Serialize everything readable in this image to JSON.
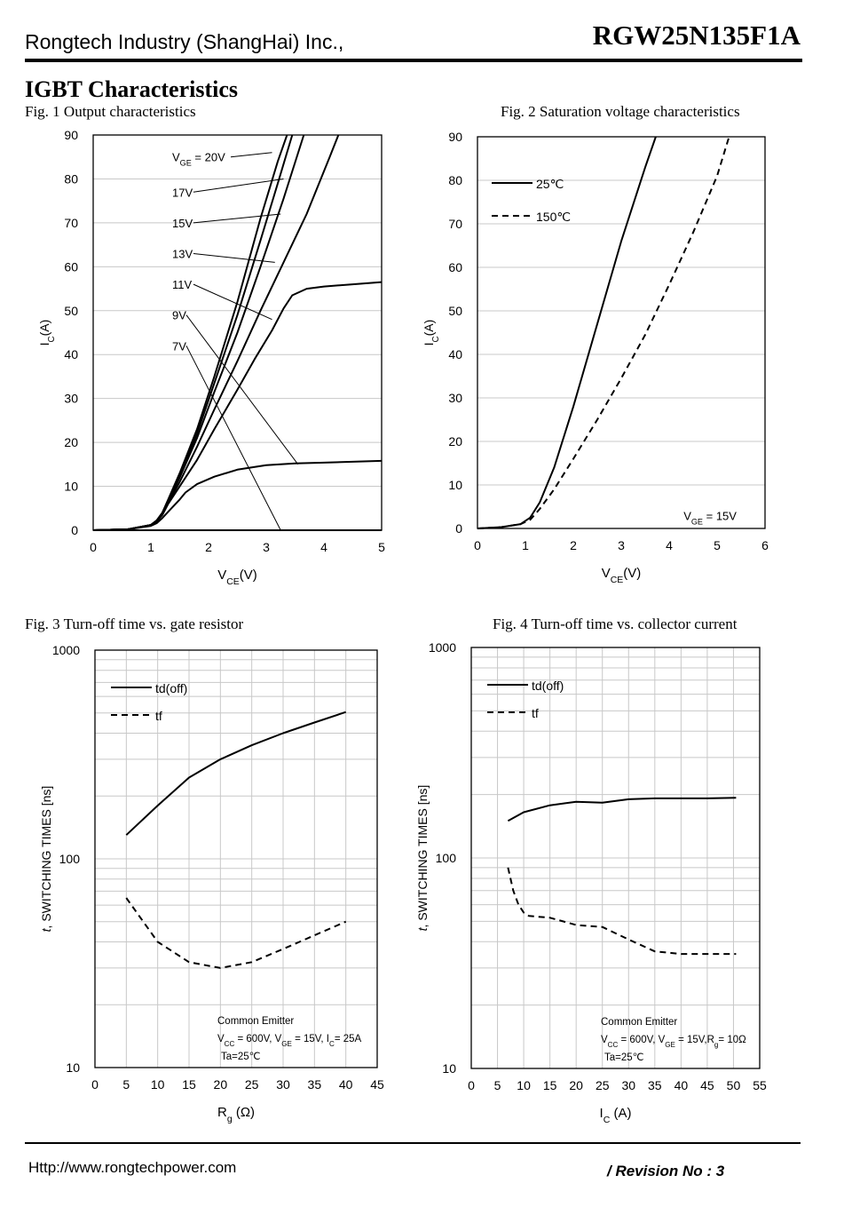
{
  "header": {
    "company": "Rongtech Industry (ShangHai) Inc.,",
    "part_number": "RGW25N135F1A"
  },
  "section_title": "IGBT Characteristics",
  "footer": {
    "url": "Http://www.rongtechpower.com",
    "revision": "/ Revision No : 3"
  },
  "colors": {
    "line": "#000000",
    "grid": "#c8c8c8",
    "background": "#ffffff"
  },
  "chart_data": [
    {
      "id": "fig1",
      "type": "line",
      "caption": "Fig. 1 Output characteristics",
      "xlabel": "V",
      "xlabel_sub": "CE",
      "xlabel_tail": "(V)",
      "ylabel": "I",
      "ylabel_sub": "C",
      "ylabel_tail": "(A)",
      "xlim": [
        0,
        5
      ],
      "ylim": [
        0,
        90
      ],
      "xticks": [
        0,
        1,
        2,
        3,
        4,
        5
      ],
      "yticks": [
        0,
        10,
        20,
        30,
        40,
        50,
        60,
        70,
        80,
        90
      ],
      "grid": "horizontal",
      "series": [
        {
          "name": "VGE = 20V",
          "label_main": "V",
          "label_sub": "GE",
          "label_tail": " = 20V",
          "dash": "",
          "label_xy": [
            1.0,
            85
          ],
          "target": [
            3.1,
            86
          ],
          "x": [
            0,
            0.6,
            1.0,
            1.1,
            1.2,
            1.3,
            1.5,
            1.8,
            2.1,
            2.5,
            2.9,
            3.2,
            3.36
          ],
          "y": [
            0,
            0.2,
            1.2,
            2.2,
            4.0,
            7.0,
            13.0,
            23.0,
            35.0,
            52.0,
            71.0,
            84.0,
            90.0
          ]
        },
        {
          "name": "17V",
          "label_main": "17V",
          "label_sub": "",
          "label_tail": "",
          "dash": "",
          "label_xy": [
            1.0,
            77
          ],
          "target": [
            3.3,
            80
          ],
          "x": [
            0,
            0.6,
            1.0,
            1.1,
            1.2,
            1.3,
            1.5,
            1.8,
            2.1,
            2.5,
            2.9,
            3.2,
            3.45
          ],
          "y": [
            0,
            0.2,
            1.2,
            2.2,
            4.0,
            6.8,
            12.5,
            22.0,
            33.5,
            49.0,
            66.0,
            79.0,
            90.0
          ]
        },
        {
          "name": "15V",
          "label_main": "15V",
          "label_sub": "",
          "label_tail": "",
          "dash": "",
          "label_xy": [
            1.0,
            70
          ],
          "target": [
            3.25,
            72
          ],
          "x": [
            0,
            0.6,
            1.0,
            1.1,
            1.2,
            1.3,
            1.5,
            1.8,
            2.1,
            2.5,
            2.9,
            3.3,
            3.65
          ],
          "y": [
            0,
            0.2,
            1.2,
            2.1,
            3.8,
            6.5,
            12.0,
            21.0,
            31.5,
            45.0,
            60.0,
            75.5,
            90.0
          ]
        },
        {
          "name": "13V",
          "label_main": "13V",
          "label_sub": "",
          "label_tail": "",
          "dash": "",
          "label_xy": [
            1.0,
            63
          ],
          "target": [
            3.15,
            61
          ],
          "x": [
            0,
            0.6,
            1.0,
            1.1,
            1.2,
            1.3,
            1.5,
            1.8,
            2.1,
            2.5,
            2.9,
            3.3,
            3.7,
            4.1,
            4.25
          ],
          "y": [
            0,
            0.2,
            1.2,
            2.0,
            3.6,
            6.2,
            11.0,
            19.0,
            27.5,
            38.5,
            50.0,
            61.0,
            72.0,
            85.0,
            90.0
          ]
        },
        {
          "name": "11V",
          "label_main": "11V",
          "label_sub": "",
          "label_tail": "",
          "dash": "",
          "label_xy": [
            1.0,
            56
          ],
          "target": [
            3.1,
            48
          ],
          "x": [
            0,
            0.6,
            1.0,
            1.1,
            1.2,
            1.3,
            1.5,
            1.8,
            2.1,
            2.5,
            2.8,
            3.1,
            3.3,
            3.45,
            3.7,
            4.0,
            4.5,
            5.0
          ],
          "y": [
            0,
            0.2,
            1.2,
            2.0,
            3.5,
            6.0,
            10.0,
            16.0,
            23.0,
            32.0,
            39.0,
            45.5,
            50.5,
            53.5,
            55.0,
            55.5,
            56.0,
            56.5
          ]
        },
        {
          "name": "9V",
          "label_main": "9V",
          "label_sub": "",
          "label_tail": "",
          "dash": "",
          "label_xy": [
            1.0,
            49
          ],
          "target": [
            3.55,
            15
          ],
          "x": [
            0,
            0.6,
            1.0,
            1.1,
            1.2,
            1.3,
            1.4,
            1.5,
            1.6,
            1.8,
            2.1,
            2.5,
            3.0,
            3.5,
            4.0,
            5.0
          ],
          "y": [
            0,
            0.2,
            1.0,
            1.6,
            2.8,
            4.2,
            5.6,
            7.0,
            8.6,
            10.5,
            12.2,
            13.8,
            14.8,
            15.2,
            15.4,
            15.8
          ]
        },
        {
          "name": "7V",
          "label_main": "7V",
          "label_sub": "",
          "label_tail": "",
          "dash": "",
          "label_xy": [
            1.0,
            42
          ],
          "target": [
            3.25,
            0
          ],
          "x": [
            0,
            1.0,
            2.0,
            3.0,
            4.0,
            5.0
          ],
          "y": [
            0,
            0,
            0,
            0,
            0,
            0
          ]
        }
      ]
    },
    {
      "id": "fig2",
      "type": "line",
      "caption": "Fig. 2 Saturation voltage characteristics",
      "xlabel": "V",
      "xlabel_sub": "CE",
      "xlabel_tail": "(V)",
      "ylabel": "I",
      "ylabel_sub": "C",
      "ylabel_tail": "(A)",
      "xlim": [
        0,
        6
      ],
      "ylim": [
        0,
        90
      ],
      "xticks": [
        0,
        1,
        2,
        3,
        4,
        5,
        6
      ],
      "yticks": [
        0,
        10,
        20,
        30,
        40,
        50,
        60,
        70,
        80,
        90
      ],
      "grid": "horizontal",
      "annotation": {
        "main": "V",
        "sub": "GE",
        "tail": "= 15V",
        "xy": [
          4.3,
          3
        ]
      },
      "series": [
        {
          "name": "25℃",
          "dash": "",
          "x": [
            0,
            0.5,
            0.9,
            1.1,
            1.3,
            1.6,
            2.0,
            2.5,
            3.0,
            3.5,
            3.72
          ],
          "y": [
            0,
            0.3,
            1.0,
            2.5,
            6.0,
            14.0,
            28.0,
            47.0,
            66.0,
            83.0,
            90.0
          ]
        },
        {
          "name": "150℃",
          "dash": "7 5",
          "x": [
            0,
            0.5,
            0.9,
            1.1,
            1.3,
            1.6,
            2.0,
            2.5,
            3.0,
            3.5,
            4.0,
            4.5,
            5.0,
            5.25
          ],
          "y": [
            0,
            0.3,
            1.0,
            2.0,
            4.5,
            9.0,
            16.0,
            25.0,
            34.5,
            44.5,
            56.0,
            68.0,
            81.0,
            90.0
          ]
        }
      ]
    },
    {
      "id": "fig3",
      "type": "line",
      "caption": "Fig. 3 Turn-off time vs. gate resistor",
      "xlabel": "R",
      "xlabel_sub": "g",
      "xlabel_tail": " (Ω)",
      "ylabel_italic": "t",
      "ylabel_rest": ", SWITCHING TIMES [ns]",
      "yscale": "log",
      "xlim": [
        0,
        45
      ],
      "ylim": [
        10,
        1000
      ],
      "xticks": [
        0,
        5,
        10,
        15,
        20,
        25,
        30,
        35,
        40,
        45
      ],
      "yticks": [
        10,
        100,
        1000
      ],
      "grid": "both",
      "notes": [
        {
          "text": "Common Emitter"
        },
        {
          "text": "V_CC = 600V, V_GE = 15V, I_C= 25A",
          "parts": [
            [
              "V",
              ""
            ],
            [
              "CC",
              "sub"
            ],
            [
              " = 600V, V",
              ""
            ],
            [
              "GE",
              "sub"
            ],
            [
              " = 15V, I",
              ""
            ],
            [
              "C",
              "sub"
            ],
            [
              "= 25A",
              ""
            ]
          ]
        },
        {
          "text": "Ta=25℃"
        }
      ],
      "series": [
        {
          "name": "td(off)",
          "dash": "",
          "x": [
            5,
            10,
            15,
            20,
            25,
            30,
            35,
            40
          ],
          "y": [
            130,
            180,
            245,
            300,
            350,
            400,
            450,
            505
          ]
        },
        {
          "name": "tf",
          "dash": "7 5",
          "x": [
            5,
            10,
            15,
            20,
            25,
            30,
            35,
            40
          ],
          "y": [
            65,
            40,
            32,
            30,
            32,
            37,
            43,
            50
          ]
        }
      ]
    },
    {
      "id": "fig4",
      "type": "line",
      "caption": "Fig. 4 Turn-off time vs. collector current",
      "xlabel": "I",
      "xlabel_sub": "C",
      "xlabel_tail": " (A)",
      "ylabel_italic": "t",
      "ylabel_rest": ", SWITCHING TIMES [ns]",
      "yscale": "log",
      "xlim": [
        0,
        55
      ],
      "ylim": [
        10,
        1000
      ],
      "xticks": [
        0,
        5,
        10,
        15,
        20,
        25,
        30,
        35,
        40,
        45,
        50,
        55
      ],
      "yticks": [
        10,
        100,
        1000
      ],
      "grid": "both",
      "notes": [
        {
          "text": "Common Emitter"
        },
        {
          "text": "V_CC = 600V, V_GE = 15V,R_g= 10Ω",
          "parts": [
            [
              "V",
              ""
            ],
            [
              "CC",
              "sub"
            ],
            [
              " = 600V, V",
              ""
            ],
            [
              "GE",
              "sub"
            ],
            [
              " = 15V,R",
              ""
            ],
            [
              "g",
              "sub"
            ],
            [
              "= 10Ω",
              ""
            ]
          ]
        },
        {
          "text": "Ta=25℃"
        }
      ],
      "series": [
        {
          "name": "td(off)",
          "dash": "",
          "x": [
            7,
            10,
            15,
            20,
            25,
            30,
            35,
            40,
            45,
            50.5
          ],
          "y": [
            150,
            165,
            178,
            185,
            183,
            190,
            192,
            192,
            192,
            193
          ]
        },
        {
          "name": "tf",
          "dash": "7 5",
          "x": [
            7,
            8,
            9,
            10,
            11,
            15,
            20,
            25,
            30,
            35,
            40,
            45,
            50.5
          ],
          "y": [
            90,
            70,
            60,
            55,
            53,
            52,
            48,
            47,
            41,
            36,
            35,
            35,
            35
          ]
        }
      ]
    }
  ]
}
